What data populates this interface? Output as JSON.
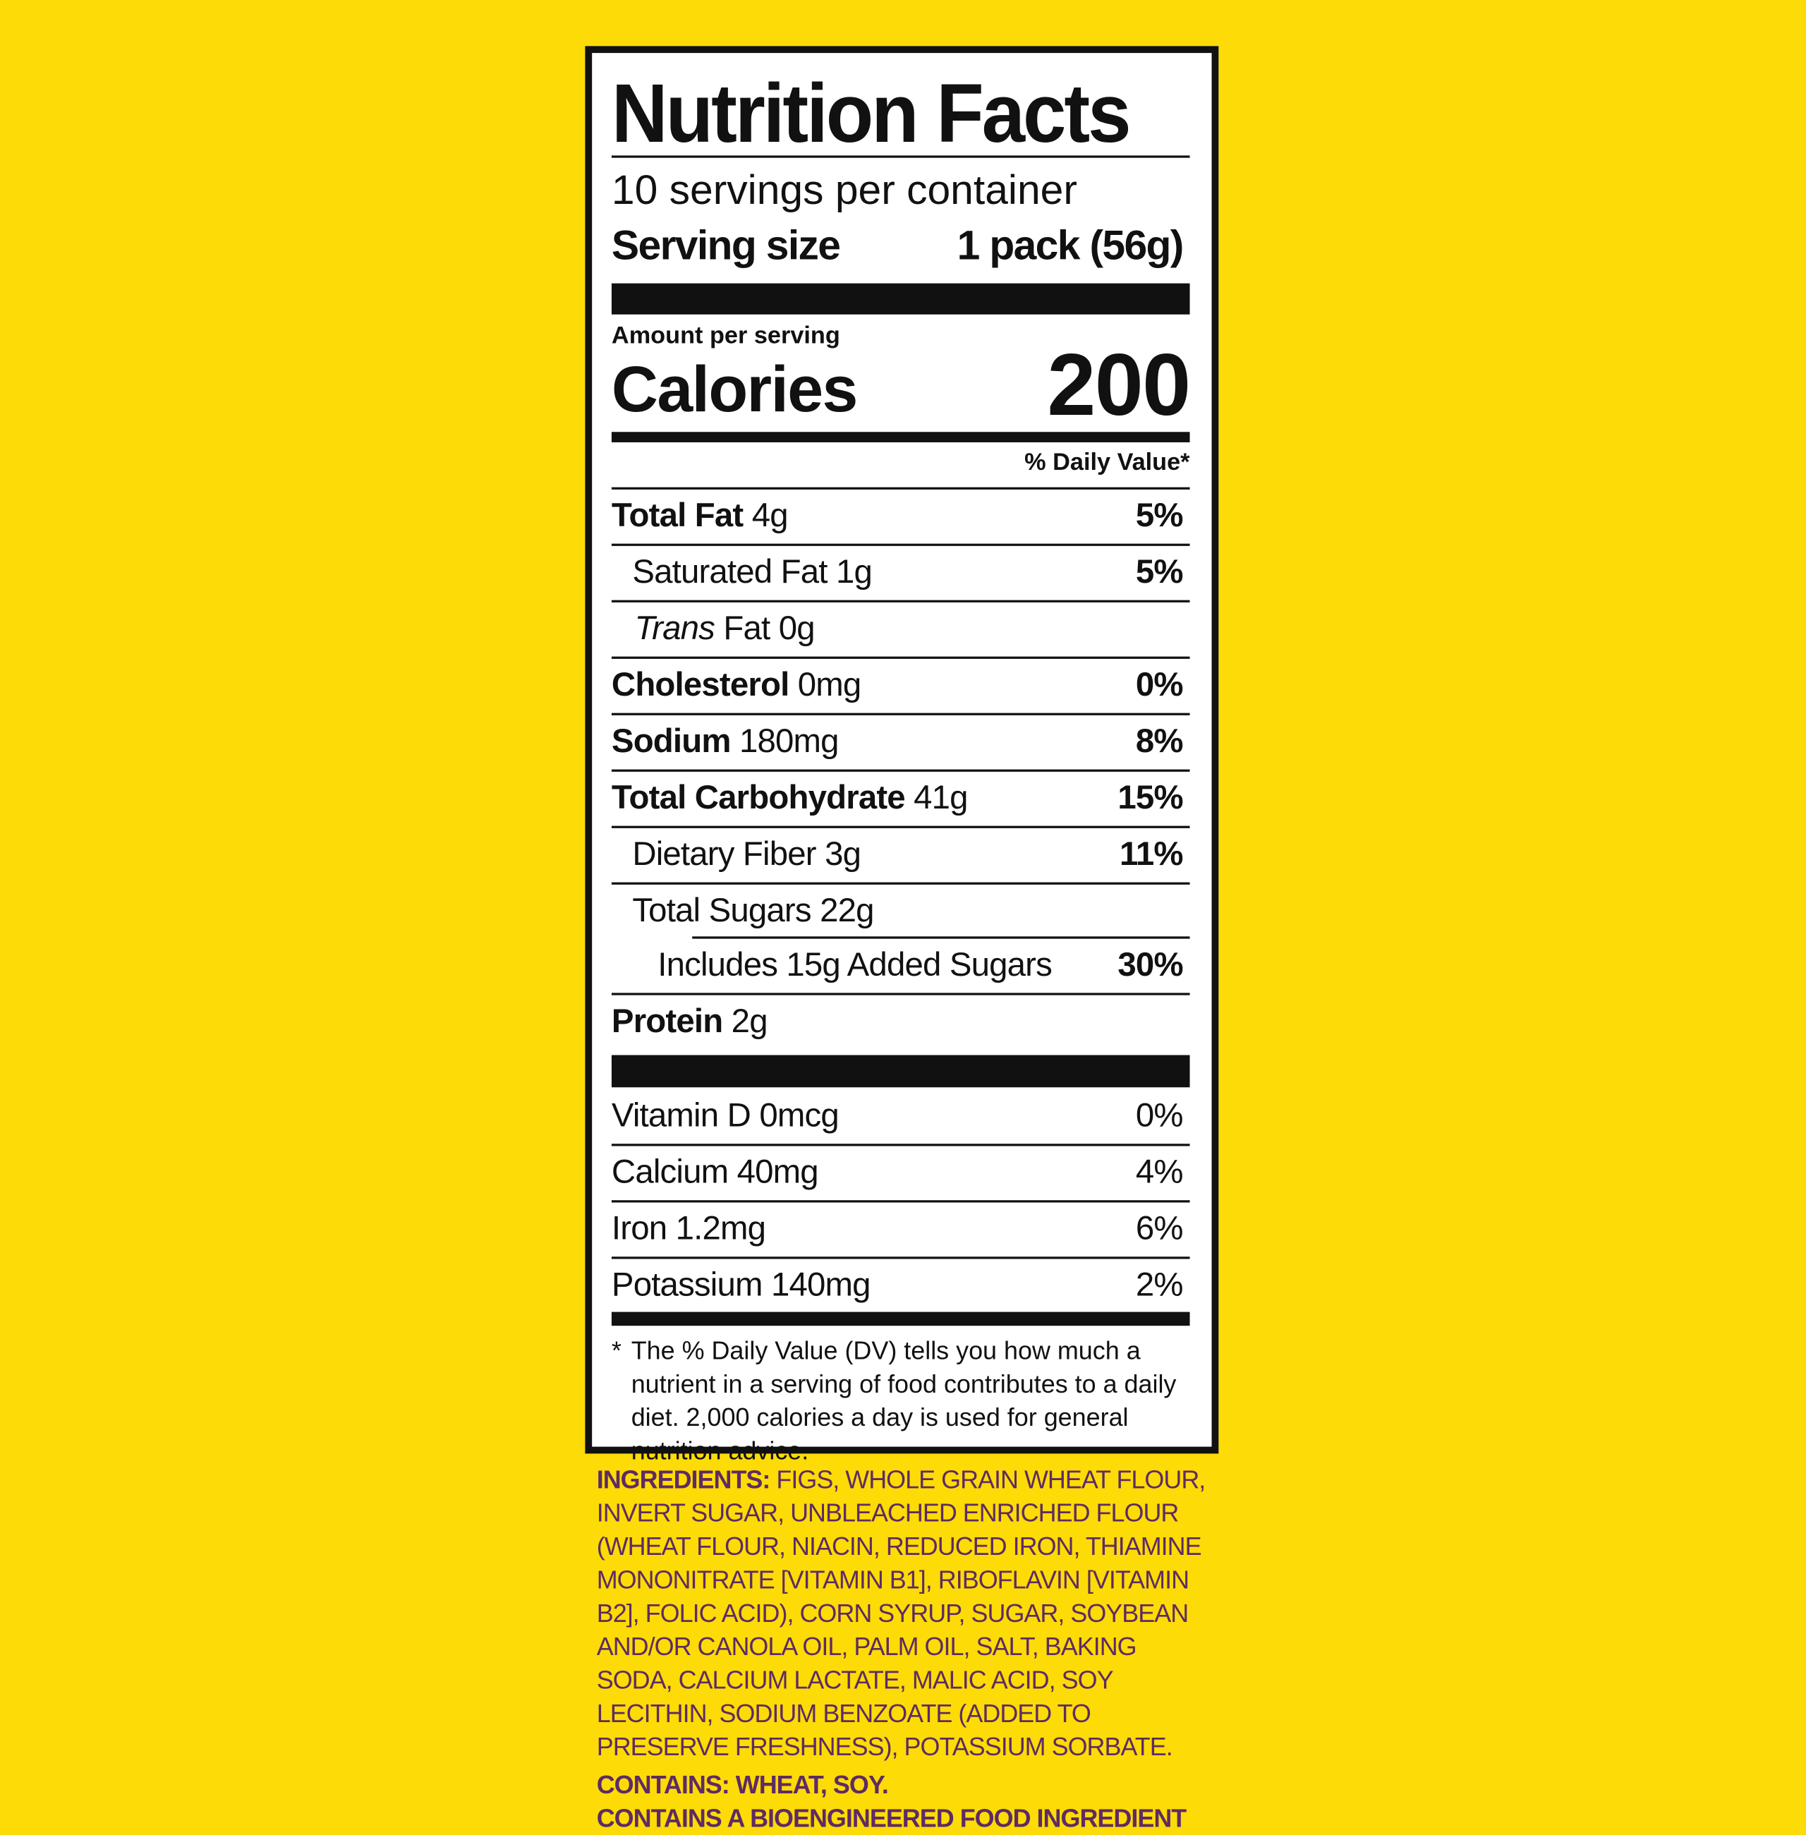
{
  "label": {
    "title": "Nutrition Facts",
    "servings": "10 servings per container",
    "serving_size_label": "Serving size",
    "serving_size": "1 pack (56g)",
    "amount_per_serving": "Amount per serving",
    "calories_label": "Calories",
    "calories": "200",
    "daily_value_header": "% Daily Value*",
    "nutrients": [
      {
        "name": "Total Fat",
        "amount": "4g",
        "dv": "5%"
      },
      {
        "name": "Saturated Fat",
        "amount": "1g",
        "dv": "5%"
      },
      {
        "name": "Trans",
        "name_rest": "Fat",
        "amount": "0g"
      },
      {
        "name": "Cholesterol",
        "amount": "0mg",
        "dv": "0%"
      },
      {
        "name": "Sodium",
        "amount": "180mg",
        "dv": "8%"
      },
      {
        "name": "Total Carbohydrate",
        "amount": "41g",
        "dv": "15%"
      },
      {
        "name": "Dietary Fiber",
        "amount": "3g",
        "dv": "11%"
      },
      {
        "name": "Total Sugars",
        "amount": "22g"
      },
      {
        "name": "Includes 15g Added Sugars",
        "dv": "30%"
      },
      {
        "name": "Protein",
        "amount": "2g"
      }
    ],
    "vitamins": [
      {
        "name": "Vitamin D",
        "amount": "0mcg",
        "dv": "0%"
      },
      {
        "name": "Calcium",
        "amount": "40mg",
        "dv": "4%"
      },
      {
        "name": "Iron",
        "amount": "1.2mg",
        "dv": "6%"
      },
      {
        "name": "Potassium",
        "amount": "140mg",
        "dv": "2%"
      }
    ],
    "footnote_mark": "*",
    "footnote": "The % Daily Value (DV) tells you how much a nutrient in a serving of food contributes to a daily diet. 2,000 calories a day is used for general nutrition advice."
  },
  "ingredients": {
    "label": "INGREDIENTS:",
    "text": "FIGS, WHOLE GRAIN WHEAT FLOUR, INVERT SUGAR, UNBLEACHED ENRICHED FLOUR (WHEAT FLOUR, NIACIN, REDUCED IRON, THIAMINE MONONITRATE [VITAMIN B1], RIBOFLAVIN [VITAMIN B2], FOLIC ACID), CORN SYRUP, SUGAR, SOYBEAN AND/OR CANOLA OIL, PALM OIL, SALT, BAKING SODA, CALCIUM LACTATE, MALIC ACID, SOY LECITHIN, SODIUM BENZOATE (ADDED TO PRESERVE FRESHNESS), POTASSIUM SORBATE."
  },
  "contains": {
    "label": "CONTAINS:",
    "text": "WHEAT, SOY."
  },
  "bioengineered": "CONTAINS A BIOENGINEERED FOOD INGREDIENT"
}
